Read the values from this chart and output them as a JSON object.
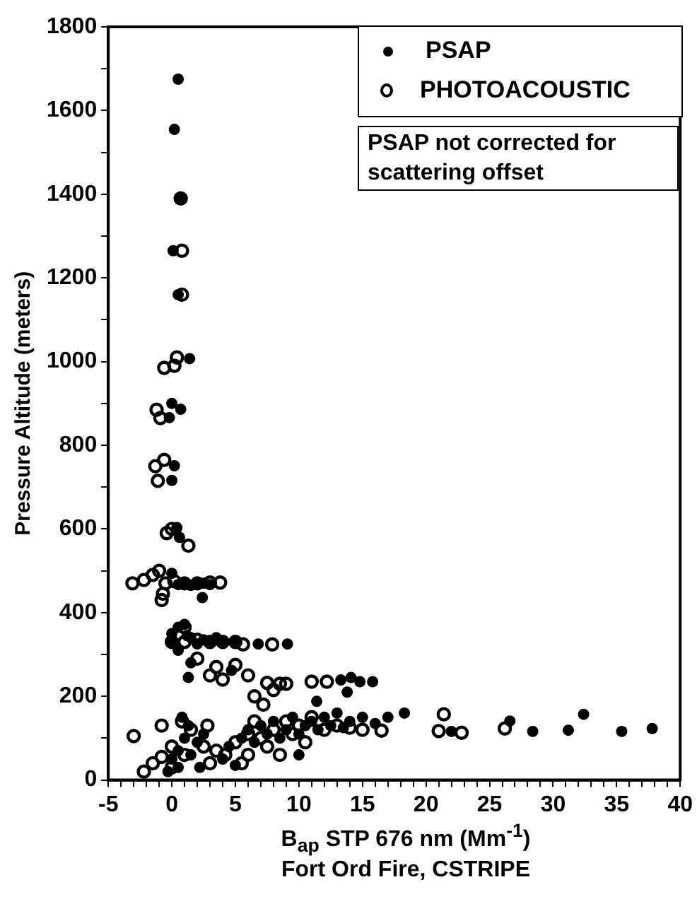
{
  "chart_data": {
    "type": "scatter",
    "title": "Fort Ord Fire, CSTRIPE",
    "xlabel": "B$_{ap}$ STP 676 nm (Mm$^{-1}$)",
    "ylabel": "Pressure Altitude (meters)",
    "annotations": [
      "PSAP not corrected for scattering offset"
    ],
    "xlim": [
      -5,
      40
    ],
    "ylim": [
      0,
      1800
    ],
    "xticks": [
      -5,
      {
        "value": -4,
        "label": null
      },
      {
        "value": -3,
        "label": null
      },
      {
        "value": -2,
        "label": null
      },
      {
        "value": -1,
        "label": null
      },
      0,
      {
        "value": 1,
        "label": null
      },
      {
        "value": 2,
        "label": null
      },
      {
        "value": 3,
        "label": null
      },
      {
        "value": 4,
        "label": null
      },
      5,
      {
        "value": 6,
        "label": null
      },
      {
        "value": 7,
        "label": null
      },
      {
        "value": 8,
        "label": null
      },
      {
        "value": 9,
        "label": null
      },
      10,
      {
        "value": 11,
        "label": null
      },
      {
        "value": 12,
        "label": null
      },
      {
        "value": 13,
        "label": null
      },
      {
        "value": 14,
        "label": null
      },
      15,
      {
        "value": 16,
        "label": null
      },
      {
        "value": 17,
        "label": null
      },
      {
        "value": 18,
        "label": null
      },
      {
        "value": 19,
        "label": null
      },
      20,
      {
        "value": 21,
        "label": null
      },
      {
        "value": 22,
        "label": null
      },
      {
        "value": 23,
        "label": null
      },
      {
        "value": 24,
        "label": null
      },
      25,
      {
        "value": 26,
        "label": null
      },
      {
        "value": 27,
        "label": null
      },
      {
        "value": 28,
        "label": null
      },
      {
        "value": 29,
        "label": null
      },
      30,
      {
        "value": 31,
        "label": null
      },
      {
        "value": 32,
        "label": null
      },
      {
        "value": 33,
        "label": null
      },
      {
        "value": 34,
        "label": null
      },
      35,
      {
        "value": 36,
        "label": null
      },
      {
        "value": 37,
        "label": null
      },
      {
        "value": 38,
        "label": null
      },
      {
        "value": 39,
        "label": null
      },
      40
    ],
    "yticks": [
      0,
      {
        "value": 100,
        "label": null
      },
      200,
      {
        "value": 300,
        "label": null
      },
      400,
      {
        "value": 500,
        "label": null
      },
      600,
      {
        "value": 700,
        "label": null
      },
      800,
      {
        "value": 900,
        "label": null
      },
      1000,
      {
        "value": 1100,
        "label": null
      },
      1200,
      {
        "value": 1300,
        "label": null
      },
      1400,
      {
        "value": 1500,
        "label": null
      },
      1600,
      {
        "value": 1700,
        "label": null
      },
      1800
    ],
    "grid": false,
    "legend": "top right",
    "marker": "circle",
    "series": [
      {
        "name": "PSAP",
        "color": "#000000",
        "x": [
          0.5,
          0.2,
          0.6,
          0.1,
          0.5,
          1.4,
          0,
          0.7,
          -0.2,
          0.2,
          0,
          0.4,
          0.6,
          0,
          0.5,
          1,
          1.5,
          2,
          2.5,
          3,
          2.4,
          0,
          0,
          0.5,
          1,
          1.5,
          2,
          2.5,
          3,
          3.5,
          4,
          5,
          6.8,
          9.1,
          0.5,
          1.2,
          1.3,
          1.5,
          4.7,
          11.4,
          13.3,
          14.1,
          14.8,
          15.8,
          13.8,
          -0.3,
          0,
          0.5,
          1,
          1.3,
          0.8,
          1.5,
          2,
          2.5,
          0.5,
          4,
          4.5,
          5.5,
          6,
          6.5,
          7,
          7.5,
          8,
          8.5,
          9,
          9.5,
          10,
          10.5,
          11,
          11.5,
          12,
          12.5,
          13,
          13.5,
          14,
          15,
          16,
          17,
          18.3,
          5,
          10,
          2.2,
          22,
          26.6,
          28.4,
          31.2,
          32.4,
          35.4,
          37.8
        ],
        "values": [
          1675,
          1555,
          1390,
          1265,
          1160,
          1007,
          900,
          886,
          866,
          751,
          716,
          603,
          580,
          494,
          467,
          470,
          465,
          468,
          470,
          467,
          436,
          330,
          350,
          365,
          372,
          340,
          325,
          335,
          330,
          340,
          330,
          330,
          325,
          325,
          310,
          345,
          245,
          280,
          262,
          188,
          239,
          245,
          235,
          235,
          210,
          20,
          50,
          70,
          100,
          130,
          150,
          60,
          90,
          110,
          30,
          50,
          80,
          100,
          120,
          90,
          130,
          110,
          140,
          100,
          120,
          150,
          110,
          130,
          140,
          120,
          150,
          130,
          160,
          125,
          140,
          150,
          135,
          150,
          160,
          35,
          60,
          30,
          116,
          141,
          116,
          119,
          157,
          116,
          123
        ]
      },
      {
        "name": "PHOTOACOUSTIC",
        "color": "#000000",
        "x": [
          0.7,
          0.8,
          0.8,
          0.4,
          0.2,
          -0.6,
          -1.2,
          -0.9,
          -1.3,
          -0.6,
          -1.1,
          0,
          -0.4,
          1.3,
          -3.1,
          -2.2,
          -1.5,
          -1,
          -0.5,
          0.2,
          1,
          2,
          3,
          3.8,
          -0.8,
          -0.7,
          0,
          1,
          2,
          3,
          4,
          5,
          5.6,
          7.9,
          1,
          2,
          3.5,
          4,
          3,
          5,
          6,
          7.5,
          8.5,
          9,
          11,
          12.2,
          6.5,
          7.2,
          8,
          -2.2,
          -1.5,
          -0.8,
          0,
          -0.8,
          0.8,
          1.5,
          -3,
          2.8,
          2.5,
          3.5,
          4.2,
          5,
          6,
          6.5,
          7,
          8,
          9,
          9.5,
          10,
          11,
          12,
          13,
          14,
          15,
          16.5,
          21.4,
          21,
          22.8,
          26.2,
          6,
          7.5,
          5.5,
          3,
          1,
          0,
          10.5,
          8.5
        ],
        "values": [
          1390,
          1265,
          1160,
          1010,
          990,
          985,
          885,
          865,
          750,
          765,
          715,
          600,
          590,
          560,
          470,
          478,
          490,
          500,
          470,
          475,
          470,
          470,
          472,
          472,
          430,
          445,
          330,
          330,
          335,
          330,
          330,
          330,
          324,
          324,
          365,
          290,
          270,
          240,
          250,
          275,
          250,
          232,
          230,
          230,
          235,
          235,
          200,
          180,
          215,
          20,
          40,
          55,
          80,
          130,
          140,
          120,
          105,
          130,
          80,
          70,
          60,
          90,
          110,
          140,
          100,
          120,
          140,
          110,
          130,
          150,
          120,
          130,
          125,
          120,
          118,
          157,
          117,
          113,
          123,
          60,
          80,
          40,
          40,
          60,
          30,
          90,
          60
        ]
      }
    ]
  }
}
